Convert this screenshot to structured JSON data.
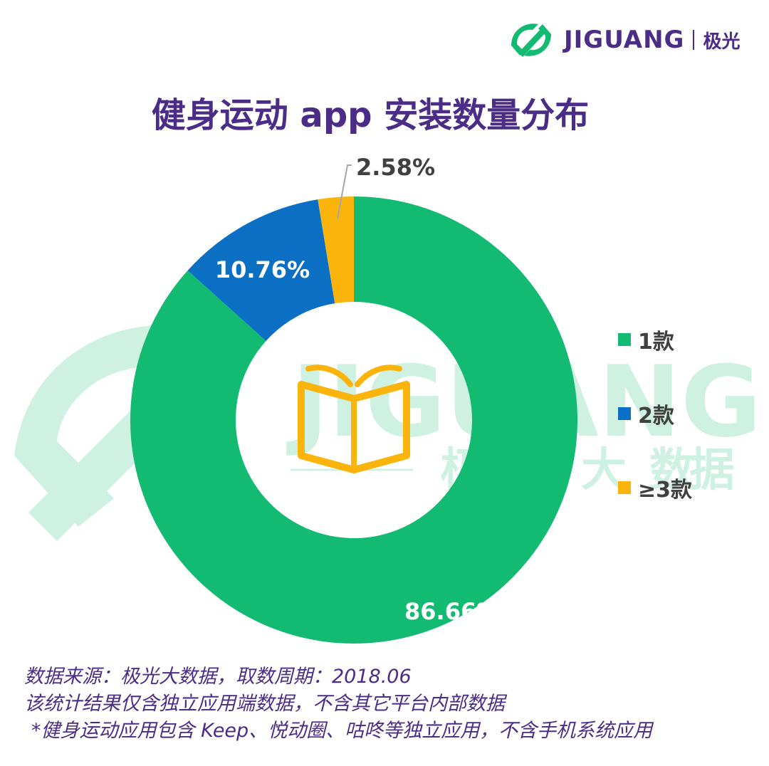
{
  "brand": {
    "name": "JIGUANG",
    "name_cn": "极光"
  },
  "title": "健身运动 app 安装数量分布",
  "watermark": {
    "word": "JIGUANG",
    "cn": [
      "极",
      "光",
      "大",
      "数",
      "据"
    ]
  },
  "colors": {
    "green": "#13bb72",
    "blue": "#0b70c4",
    "orange": "#fbb40c",
    "purple": "#4b2c86"
  },
  "chart_data": {
    "type": "pie",
    "title": "健身运动 app 安装数量分布",
    "categories": [
      "1款",
      "2款",
      "≥3款"
    ],
    "values": [
      86.66,
      10.76,
      2.58
    ],
    "labels": [
      "86.66%",
      "10.76%",
      "2.58%"
    ],
    "colors": [
      "#13bb72",
      "#0b70c4",
      "#fbb40c"
    ],
    "donut": true,
    "legend_position": "right"
  },
  "legend": [
    {
      "label": "1款",
      "color": "#13bb72"
    },
    {
      "label": "2款",
      "color": "#0b70c4"
    },
    {
      "label": "≥3款",
      "color": "#fbb40c"
    }
  ],
  "footer": {
    "source": "数据来源：极光大数据，取数周期：2018.06",
    "scope": "该统计结果仅含独立应用端数据，不含其它平台内部数据",
    "note": "*健身运动应用包含 Keep、悦动圈、咕咚等独立应用，不含手机系统应用"
  }
}
